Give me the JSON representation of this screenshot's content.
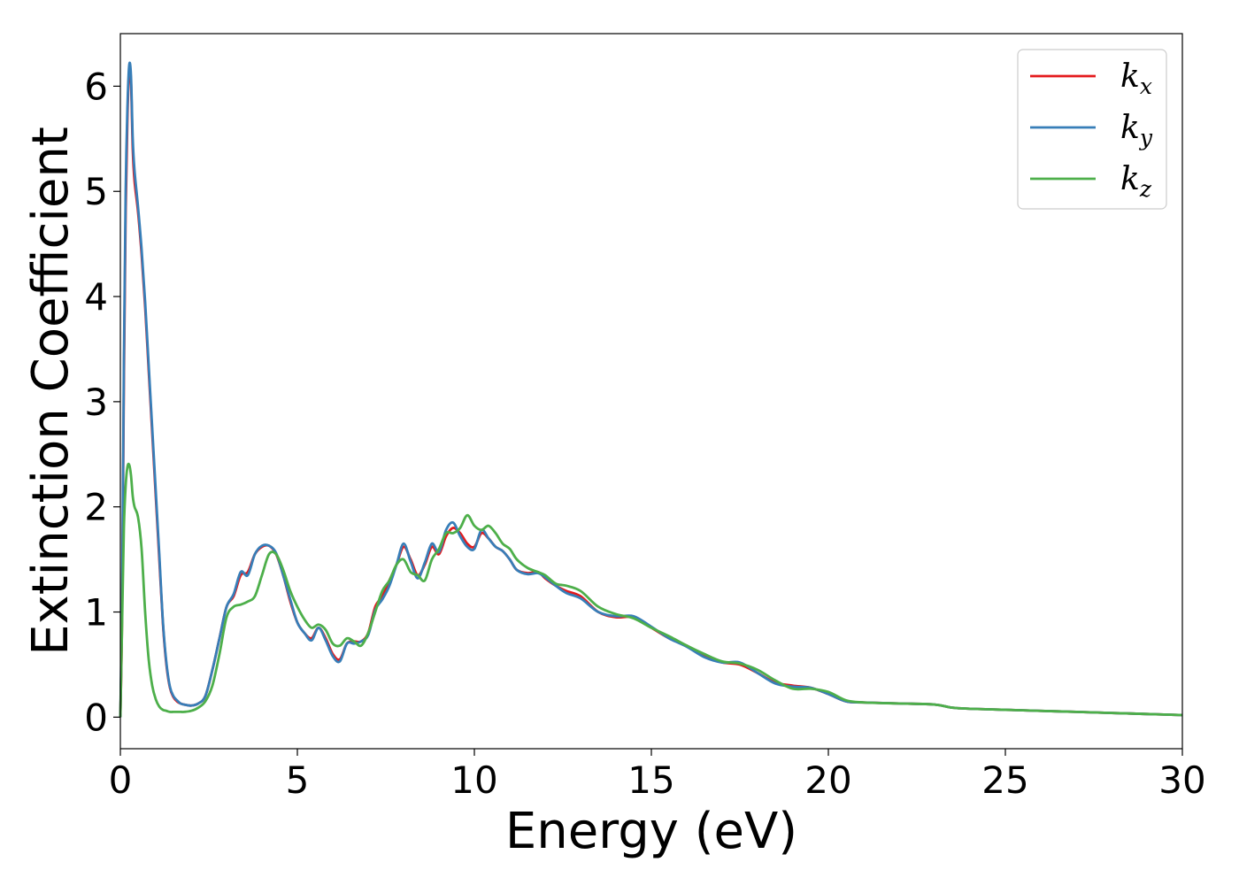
{
  "chart_data": {
    "type": "line",
    "title": "",
    "xlabel": "Energy (eV)",
    "ylabel": "Extinction Coefficient",
    "xlim": [
      0,
      30
    ],
    "ylim": [
      -0.3,
      6.5
    ],
    "xticks": [
      "0",
      "5",
      "10",
      "15",
      "20",
      "25",
      "30"
    ],
    "yticks": [
      "0",
      "1",
      "2",
      "3",
      "4",
      "5",
      "6"
    ],
    "grid": false,
    "legend_position": "top-right",
    "series": [
      {
        "name": "k",
        "sub": "x",
        "color": "#e41a1c",
        "x": [
          0,
          0.05,
          0.1,
          0.15,
          0.2,
          0.25,
          0.3,
          0.35,
          0.4,
          0.5,
          0.6,
          0.7,
          0.8,
          0.9,
          1.0,
          1.1,
          1.2,
          1.3,
          1.4,
          1.5,
          1.6,
          1.7,
          1.8,
          2.0,
          2.2,
          2.4,
          2.6,
          2.8,
          3.0,
          3.2,
          3.4,
          3.6,
          3.8,
          4.0,
          4.2,
          4.4,
          4.6,
          4.8,
          5.0,
          5.2,
          5.4,
          5.6,
          5.8,
          6.0,
          6.2,
          6.4,
          6.6,
          6.8,
          7.0,
          7.2,
          7.4,
          7.6,
          7.8,
          8.0,
          8.2,
          8.4,
          8.6,
          8.8,
          9.0,
          9.2,
          9.4,
          9.6,
          9.8,
          10.0,
          10.2,
          10.4,
          10.6,
          10.8,
          11.0,
          11.2,
          11.5,
          11.8,
          12.0,
          12.3,
          12.6,
          13.0,
          13.5,
          14.0,
          14.5,
          15.0,
          15.5,
          16.0,
          16.5,
          17.0,
          17.5,
          18.0,
          18.5,
          19.0,
          19.5,
          20.0,
          20.5,
          21.0,
          22.0,
          23.0,
          23.5,
          24.0,
          25.0,
          26.0,
          27.0,
          28.0,
          29.0,
          30.0
        ],
        "y": [
          0,
          1.0,
          3.2,
          4.8,
          5.7,
          6.15,
          6.05,
          5.4,
          5.1,
          4.8,
          4.4,
          3.9,
          3.3,
          2.7,
          2.1,
          1.5,
          0.9,
          0.5,
          0.28,
          0.19,
          0.15,
          0.13,
          0.12,
          0.11,
          0.13,
          0.2,
          0.45,
          0.75,
          1.05,
          1.15,
          1.35,
          1.38,
          1.55,
          1.62,
          1.63,
          1.55,
          1.35,
          1.1,
          0.9,
          0.8,
          0.75,
          0.85,
          0.75,
          0.6,
          0.55,
          0.7,
          0.72,
          0.72,
          0.8,
          1.05,
          1.15,
          1.3,
          1.45,
          1.62,
          1.5,
          1.35,
          1.45,
          1.62,
          1.55,
          1.72,
          1.8,
          1.75,
          1.65,
          1.62,
          1.75,
          1.7,
          1.62,
          1.58,
          1.5,
          1.4,
          1.37,
          1.38,
          1.32,
          1.25,
          1.2,
          1.15,
          1.0,
          0.95,
          0.95,
          0.85,
          0.75,
          0.68,
          0.58,
          0.52,
          0.5,
          0.42,
          0.33,
          0.3,
          0.28,
          0.22,
          0.15,
          0.14,
          0.13,
          0.12,
          0.09,
          0.08,
          0.07,
          0.06,
          0.05,
          0.04,
          0.03,
          0.02
        ]
      },
      {
        "name": "k",
        "sub": "y",
        "color": "#377eb8",
        "x": [
          0,
          0.05,
          0.1,
          0.15,
          0.2,
          0.25,
          0.3,
          0.35,
          0.4,
          0.5,
          0.6,
          0.7,
          0.8,
          0.9,
          1.0,
          1.1,
          1.2,
          1.3,
          1.4,
          1.5,
          1.6,
          1.7,
          1.8,
          2.0,
          2.2,
          2.4,
          2.6,
          2.8,
          3.0,
          3.2,
          3.4,
          3.6,
          3.8,
          4.0,
          4.2,
          4.4,
          4.6,
          4.8,
          5.0,
          5.2,
          5.4,
          5.6,
          5.8,
          6.0,
          6.2,
          6.4,
          6.6,
          6.8,
          7.0,
          7.2,
          7.4,
          7.6,
          7.8,
          8.0,
          8.2,
          8.4,
          8.6,
          8.8,
          9.0,
          9.2,
          9.4,
          9.6,
          9.8,
          10.0,
          10.2,
          10.4,
          10.6,
          10.8,
          11.0,
          11.2,
          11.5,
          11.8,
          12.0,
          12.3,
          12.6,
          13.0,
          13.5,
          14.0,
          14.5,
          15.0,
          15.5,
          16.0,
          16.5,
          17.0,
          17.5,
          18.0,
          18.5,
          19.0,
          19.5,
          20.0,
          20.5,
          21.0,
          22.0,
          23.0,
          23.5,
          24.0,
          25.0,
          26.0,
          27.0,
          28.0,
          29.0,
          30.0
        ],
        "y": [
          0,
          1.1,
          3.4,
          5.0,
          5.8,
          6.2,
          6.1,
          5.5,
          5.2,
          4.85,
          4.45,
          3.95,
          3.35,
          2.75,
          2.15,
          1.55,
          0.92,
          0.52,
          0.29,
          0.2,
          0.16,
          0.13,
          0.12,
          0.11,
          0.13,
          0.2,
          0.45,
          0.75,
          1.05,
          1.17,
          1.38,
          1.35,
          1.55,
          1.63,
          1.63,
          1.56,
          1.35,
          1.12,
          0.9,
          0.8,
          0.73,
          0.85,
          0.73,
          0.58,
          0.53,
          0.7,
          0.7,
          0.72,
          0.78,
          1.02,
          1.12,
          1.25,
          1.45,
          1.65,
          1.48,
          1.32,
          1.47,
          1.65,
          1.57,
          1.78,
          1.85,
          1.72,
          1.62,
          1.6,
          1.78,
          1.7,
          1.62,
          1.58,
          1.5,
          1.4,
          1.36,
          1.37,
          1.33,
          1.25,
          1.18,
          1.13,
          1.0,
          0.96,
          0.96,
          0.86,
          0.75,
          0.67,
          0.57,
          0.52,
          0.52,
          0.42,
          0.32,
          0.29,
          0.28,
          0.22,
          0.15,
          0.14,
          0.13,
          0.12,
          0.09,
          0.08,
          0.07,
          0.06,
          0.05,
          0.04,
          0.03,
          0.02
        ]
      },
      {
        "name": "k",
        "sub": "z",
        "color": "#4daf4a",
        "x": [
          0,
          0.05,
          0.1,
          0.15,
          0.2,
          0.25,
          0.3,
          0.35,
          0.4,
          0.5,
          0.6,
          0.7,
          0.8,
          0.9,
          1.0,
          1.1,
          1.2,
          1.3,
          1.4,
          1.5,
          1.6,
          1.7,
          1.8,
          2.0,
          2.2,
          2.4,
          2.6,
          2.8,
          3.0,
          3.2,
          3.4,
          3.6,
          3.8,
          4.0,
          4.2,
          4.4,
          4.6,
          4.8,
          5.0,
          5.2,
          5.4,
          5.6,
          5.8,
          6.0,
          6.2,
          6.4,
          6.6,
          6.8,
          7.0,
          7.2,
          7.4,
          7.6,
          7.8,
          8.0,
          8.2,
          8.4,
          8.6,
          8.8,
          9.0,
          9.2,
          9.4,
          9.6,
          9.8,
          10.0,
          10.2,
          10.4,
          10.6,
          10.8,
          11.0,
          11.2,
          11.5,
          11.8,
          12.0,
          12.3,
          12.6,
          13.0,
          13.5,
          14.0,
          14.5,
          15.0,
          15.5,
          16.0,
          16.5,
          17.0,
          17.5,
          18.0,
          18.5,
          19.0,
          19.5,
          20.0,
          20.5,
          21.0,
          22.0,
          23.0,
          23.5,
          24.0,
          25.0,
          26.0,
          27.0,
          28.0,
          29.0,
          30.0
        ],
        "y": [
          0,
          0.9,
          1.8,
          2.2,
          2.38,
          2.4,
          2.3,
          2.1,
          2.0,
          1.9,
          1.6,
          1.0,
          0.55,
          0.3,
          0.17,
          0.1,
          0.07,
          0.06,
          0.05,
          0.05,
          0.05,
          0.05,
          0.05,
          0.06,
          0.09,
          0.15,
          0.3,
          0.6,
          0.95,
          1.05,
          1.07,
          1.1,
          1.15,
          1.35,
          1.55,
          1.55,
          1.4,
          1.2,
          1.05,
          0.93,
          0.85,
          0.88,
          0.83,
          0.7,
          0.68,
          0.75,
          0.72,
          0.68,
          0.8,
          1.0,
          1.2,
          1.3,
          1.45,
          1.5,
          1.38,
          1.35,
          1.3,
          1.5,
          1.6,
          1.75,
          1.75,
          1.8,
          1.92,
          1.82,
          1.78,
          1.82,
          1.75,
          1.65,
          1.6,
          1.5,
          1.42,
          1.38,
          1.35,
          1.27,
          1.25,
          1.2,
          1.05,
          0.98,
          0.94,
          0.85,
          0.77,
          0.68,
          0.6,
          0.53,
          0.51,
          0.45,
          0.35,
          0.27,
          0.27,
          0.24,
          0.16,
          0.14,
          0.13,
          0.12,
          0.09,
          0.08,
          0.07,
          0.06,
          0.05,
          0.04,
          0.03,
          0.02
        ]
      }
    ]
  }
}
